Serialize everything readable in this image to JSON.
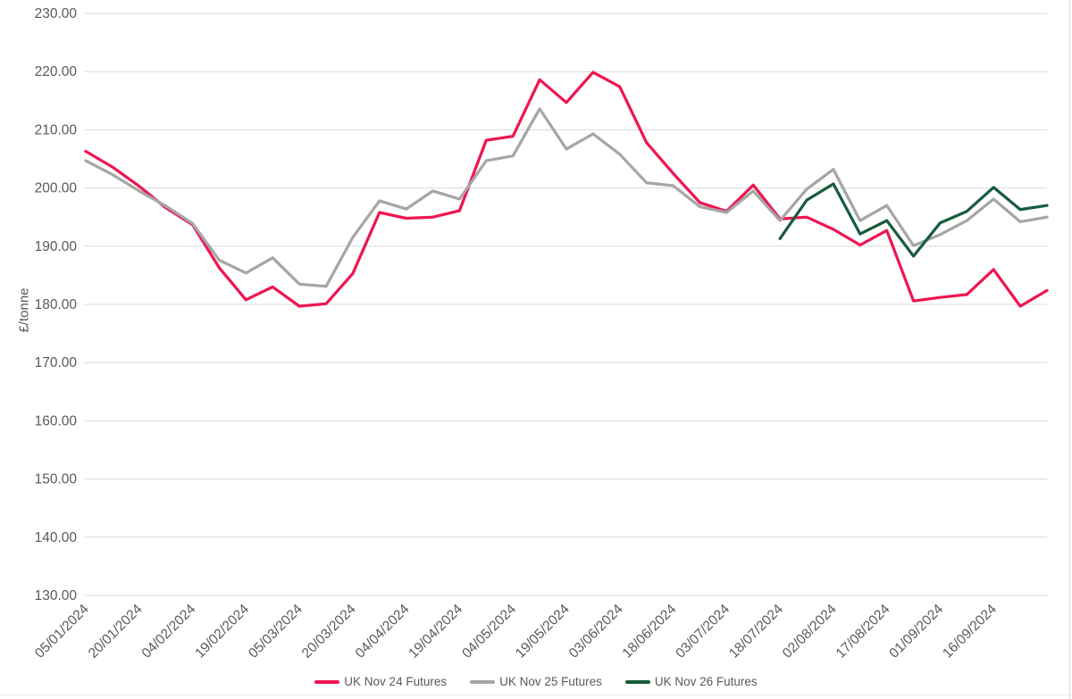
{
  "chart_data": {
    "type": "line",
    "title": "",
    "ylabel": "£/tonne",
    "ylim": [
      130,
      230
    ],
    "y_tick_step": 10,
    "y_tick_decimals": 2,
    "grid": true,
    "grid_color": "#D9D9D9",
    "axis_label_color": "#595959",
    "legend_position": "bottom",
    "x_tick_every": 2,
    "x_tick_count": 18,
    "x_tick_rotation": -45,
    "x": [
      "05/01/2024",
      "12/01/2024",
      "20/01/2024",
      "27/01/2024",
      "04/02/2024",
      "11/02/2024",
      "19/02/2024",
      "26/02/2024",
      "05/03/2024",
      "12/03/2024",
      "20/03/2024",
      "27/03/2024",
      "04/04/2024",
      "11/04/2024",
      "19/04/2024",
      "26/04/2024",
      "04/05/2024",
      "11/05/2024",
      "19/05/2024",
      "26/05/2024",
      "03/06/2024",
      "10/06/2024",
      "18/06/2024",
      "25/06/2024",
      "03/07/2024",
      "10/07/2024",
      "18/07/2024",
      "25/07/2024",
      "02/08/2024",
      "09/08/2024",
      "17/08/2024",
      "24/08/2024",
      "01/09/2024",
      "08/09/2024",
      "16/09/2024",
      "23/09/2024",
      "01/10/2024"
    ],
    "series": [
      {
        "name": "UK Nov 24 Futures",
        "color": "#ED1651",
        "values": [
          206.3,
          203.6,
          200.3,
          196.6,
          193.7,
          186.3,
          180.8,
          183.0,
          179.7,
          180.1,
          185.3,
          195.8,
          194.8,
          195.0,
          196.1,
          208.2,
          208.9,
          218.6,
          214.7,
          219.9,
          217.4,
          207.8,
          202.5,
          197.5,
          196.0,
          200.5,
          194.7,
          195.0,
          192.9,
          190.2,
          192.7,
          180.6,
          181.2,
          181.7,
          186.0,
          179.7,
          182.4
        ]
      },
      {
        "name": "UK Nov 25 Futures",
        "color": "#A6A6A6",
        "values": [
          204.7,
          202.3,
          199.5,
          196.9,
          193.9,
          187.6,
          185.4,
          188.0,
          183.5,
          183.1,
          191.5,
          197.8,
          196.4,
          199.5,
          198.1,
          204.7,
          205.5,
          213.6,
          206.7,
          209.3,
          205.8,
          200.9,
          200.4,
          196.8,
          195.8,
          199.5,
          194.4,
          199.8,
          203.2,
          194.4,
          197.0,
          190.1,
          192.0,
          194.4,
          198.1,
          194.2,
          195.0
        ]
      },
      {
        "name": "UK Nov 26 Futures",
        "color": "#175C3C",
        "values": [
          null,
          null,
          null,
          null,
          null,
          null,
          null,
          null,
          null,
          null,
          null,
          null,
          null,
          null,
          null,
          null,
          null,
          null,
          null,
          null,
          null,
          null,
          null,
          null,
          null,
          null,
          191.3,
          197.9,
          200.7,
          192.1,
          194.4,
          188.3,
          194.0,
          196.0,
          200.1,
          196.3,
          197.0
        ]
      }
    ]
  }
}
